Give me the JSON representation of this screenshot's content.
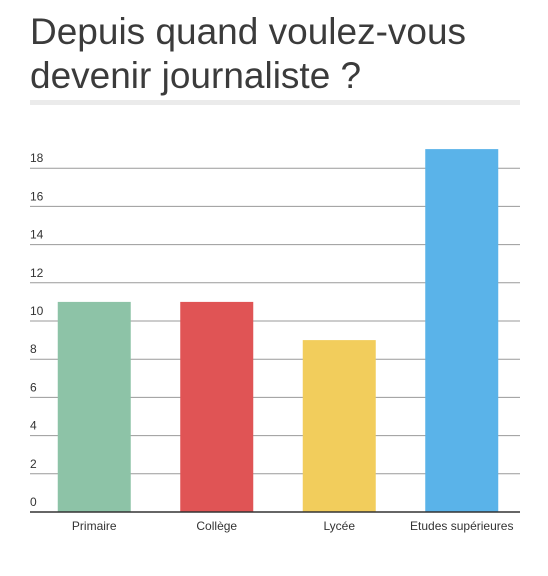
{
  "chart_data": {
    "type": "bar",
    "title": "Depuis quand voulez-vous devenir journaliste ?",
    "categories": [
      "Primaire",
      "Collège",
      "Lycée",
      "Etudes supérieures"
    ],
    "values": [
      11,
      11,
      9,
      19
    ],
    "colors": [
      "#8dc3a7",
      "#e05455",
      "#f2cd5c",
      "#5ab3e9"
    ],
    "ylim": [
      0,
      19
    ],
    "yticks": [
      0,
      2,
      4,
      6,
      8,
      10,
      12,
      14,
      16,
      18
    ],
    "grid": true,
    "legend": "none",
    "xlabel": "",
    "ylabel": ""
  }
}
